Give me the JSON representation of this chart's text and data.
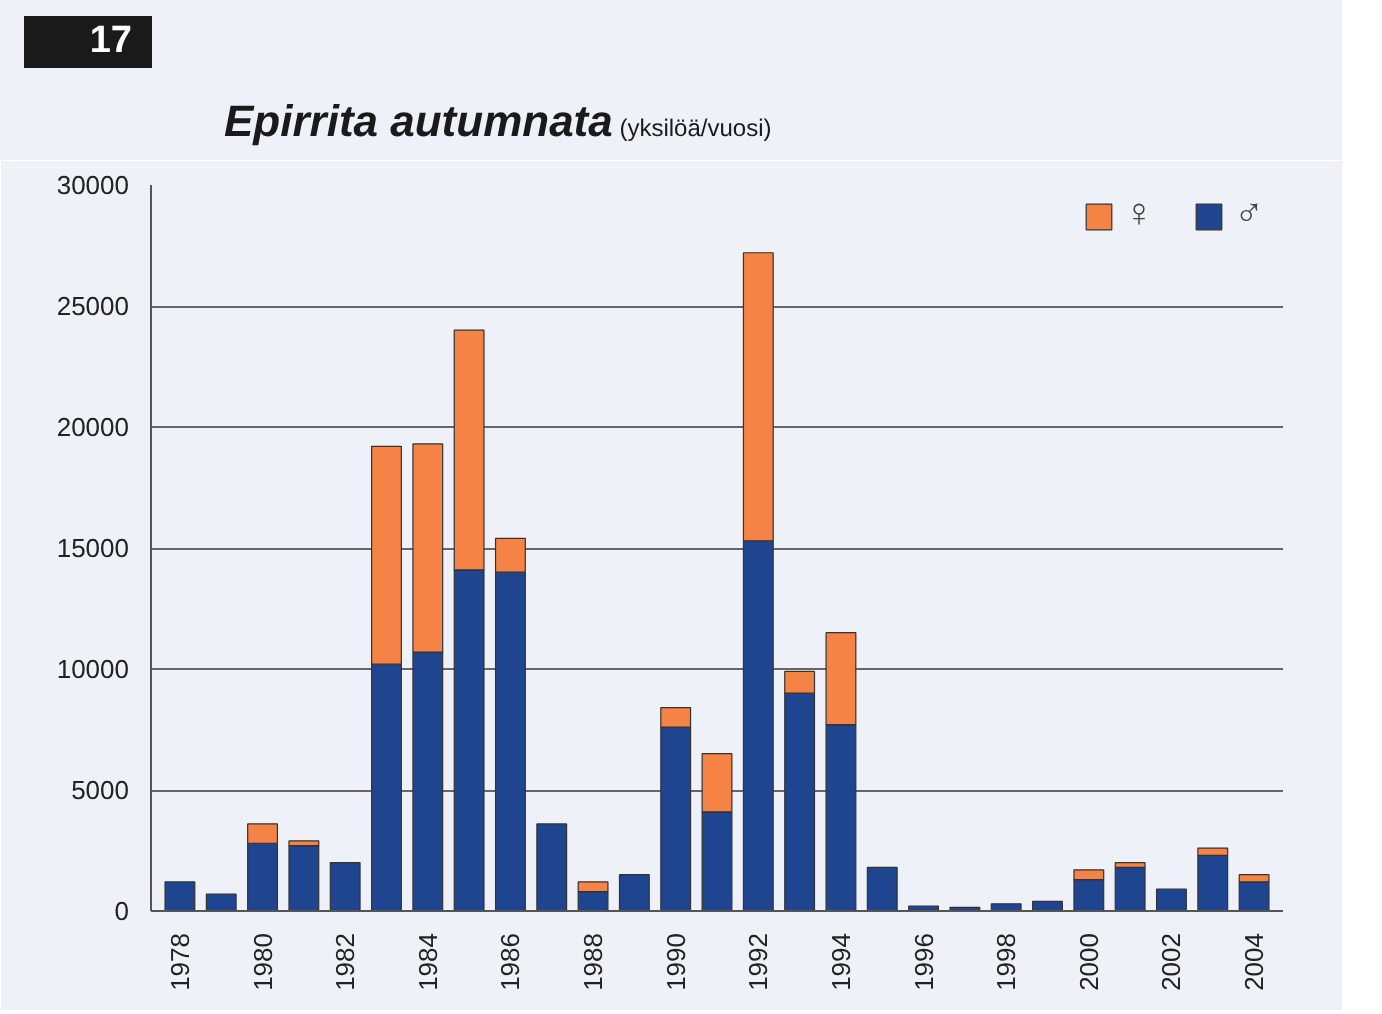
{
  "chart_data": {
    "type": "bar",
    "stacked": true,
    "title": "Epirrita autumnata",
    "subtitle": "(yksilöä/vuosi)",
    "annotations": [
      "17"
    ],
    "categories": [
      "1978",
      null,
      "1980",
      null,
      "1982",
      null,
      "1984",
      null,
      "1986",
      null,
      "1988",
      null,
      "1990",
      null,
      "1992",
      null,
      "1994",
      null,
      "1996",
      null,
      "1998",
      null,
      "2000",
      null,
      "2002",
      null,
      "2004"
    ],
    "series": [
      {
        "name": "♂",
        "color": "#1f4591",
        "values": [
          1200,
          700,
          2800,
          2700,
          2000,
          10200,
          10700,
          14100,
          14000,
          3600,
          800,
          1500,
          7600,
          4100,
          15300,
          9000,
          7700,
          1800,
          200,
          150,
          300,
          400,
          1300,
          1800,
          900,
          2300,
          1200
        ]
      },
      {
        "name": "♀",
        "color": "#f58345",
        "values": [
          null,
          null,
          800,
          200,
          null,
          9000,
          8600,
          9900,
          1400,
          null,
          400,
          null,
          800,
          2400,
          11900,
          900,
          3800,
          null,
          null,
          null,
          null,
          null,
          400,
          200,
          null,
          300,
          300
        ]
      }
    ],
    "ylim": [
      0,
      30000
    ],
    "yticks": [
      0,
      5000,
      10000,
      15000,
      20000,
      25000,
      30000
    ],
    "grid": "y",
    "legend": "top right"
  }
}
